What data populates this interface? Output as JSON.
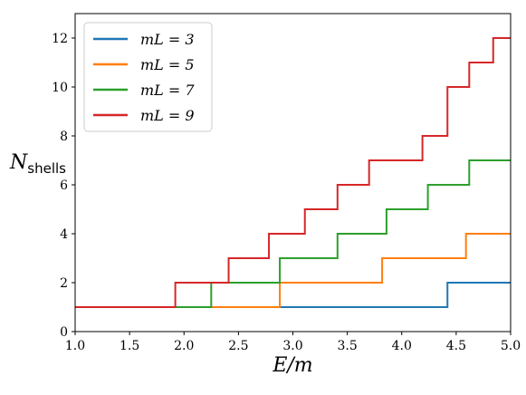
{
  "chart_data": {
    "type": "line",
    "step": true,
    "xlabel": "E/m",
    "ylabel": {
      "main": "N",
      "sub": "shells"
    },
    "xlim": [
      1.0,
      5.0
    ],
    "ylim": [
      0,
      13
    ],
    "xticks": [
      1.0,
      1.5,
      2.0,
      2.5,
      3.0,
      3.5,
      4.0,
      4.5,
      5.0
    ],
    "xtick_labels": [
      "1.0",
      "1.5",
      "2.0",
      "2.5",
      "3.0",
      "3.5",
      "4.0",
      "4.5",
      "5.0"
    ],
    "yticks": [
      0,
      2,
      4,
      6,
      8,
      10,
      12
    ],
    "ytick_labels": [
      "0",
      "2",
      "4",
      "6",
      "8",
      "10",
      "12"
    ],
    "grid": false,
    "legend_position": "top-left",
    "series": [
      {
        "name": "mL = 3",
        "color": "#1f77b4",
        "x": [
          1.0,
          4.42,
          5.0
        ],
        "y": [
          1,
          2,
          2
        ]
      },
      {
        "name": "mL = 5",
        "color": "#ff7f0e",
        "x": [
          1.0,
          2.88,
          3.82,
          4.59,
          5.0
        ],
        "y": [
          1,
          2,
          3,
          4,
          4
        ]
      },
      {
        "name": "mL = 7",
        "color": "#2ca02c",
        "x": [
          1.0,
          2.25,
          2.88,
          3.41,
          3.86,
          4.24,
          4.62,
          5.0
        ],
        "y": [
          1,
          2,
          3,
          4,
          5,
          6,
          7,
          7
        ]
      },
      {
        "name": "mL = 9",
        "color": "#d62728",
        "x": [
          1.0,
          1.92,
          2.41,
          2.78,
          3.11,
          3.41,
          3.7,
          4.19,
          4.42,
          4.62,
          4.84,
          5.0
        ],
        "y": [
          1,
          2,
          3,
          4,
          5,
          6,
          7,
          8,
          10,
          11,
          12,
          12
        ]
      }
    ]
  }
}
